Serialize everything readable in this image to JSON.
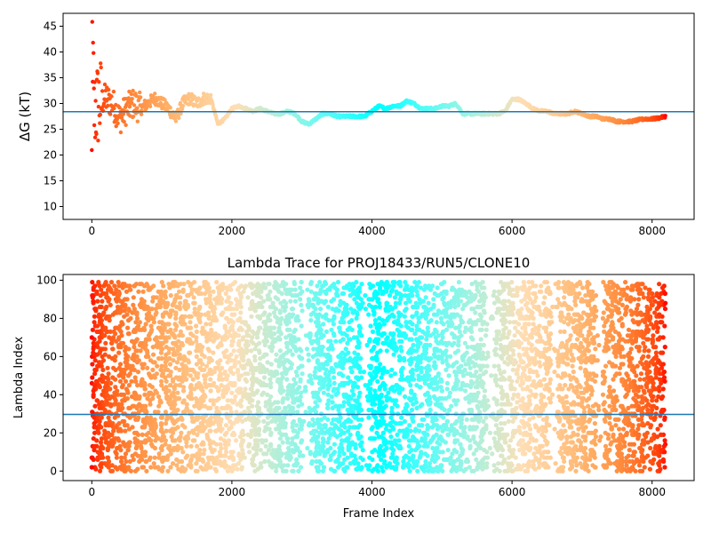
{
  "chart_data": [
    {
      "type": "scatter",
      "title": "",
      "xlabel": "",
      "ylabel": "ΔG (kT)",
      "xlim": [
        -410,
        8600
      ],
      "ylim": [
        7.5,
        47.5
      ],
      "xticks": [
        0,
        2000,
        4000,
        6000,
        8000
      ],
      "yticks": [
        10,
        15,
        20,
        25,
        30,
        35,
        40,
        45
      ],
      "xtick_labels": [
        "0",
        "2000",
        "4000",
        "6000",
        "8000"
      ],
      "ytick_labels": [
        "10",
        "15",
        "20",
        "25",
        "30",
        "35",
        "40",
        "45"
      ],
      "grid": false,
      "colormap": "rainbow (red at frame 0 to violet at last frame)",
      "reference_line": 28.4,
      "reference_line_color": "#1f77b4",
      "series_trend": {
        "frames": [
          0,
          100,
          200,
          300,
          400,
          500,
          600,
          700,
          800,
          900,
          1000,
          1100,
          1200,
          1300,
          1400,
          1500,
          1600,
          1700,
          1800,
          1900,
          2000,
          2100,
          2200,
          2300,
          2400,
          2500,
          2600,
          2700,
          2800,
          2900,
          3000,
          3100,
          3200,
          3300,
          3400,
          3500,
          3600,
          3700,
          3800,
          3900,
          4000,
          4100,
          4200,
          4300,
          4400,
          4500,
          4600,
          4700,
          4800,
          4900,
          5000,
          5100,
          5200,
          5300,
          5400,
          5500,
          5600,
          5700,
          5800,
          5900,
          6000,
          6100,
          6200,
          6300,
          6400,
          6500,
          6600,
          6700,
          6800,
          6900,
          7000,
          7100,
          7200,
          7300,
          7400,
          7500,
          7600,
          7700,
          7800,
          7900,
          8000,
          8100,
          8190
        ],
        "dG": [
          28,
          30,
          31,
          30,
          27,
          29,
          30,
          29,
          30,
          31,
          30,
          29,
          27,
          30,
          31,
          30,
          31,
          31,
          26,
          27,
          29,
          29.5,
          29,
          28.5,
          29,
          28.5,
          28,
          28,
          28.5,
          28,
          26.5,
          26,
          27,
          28,
          28,
          27.5,
          27.5,
          27.5,
          27.5,
          27.5,
          28.5,
          29.5,
          29,
          29.5,
          29.5,
          30.5,
          30,
          29,
          29,
          29,
          29.5,
          29.5,
          30,
          28,
          28,
          28,
          28,
          28,
          28,
          28.5,
          30.8,
          30.8,
          30,
          29,
          28.5,
          28.5,
          28,
          28,
          28,
          28.5,
          28,
          27.5,
          27.5,
          27,
          27,
          26.5,
          26.5,
          26.5,
          26.8,
          27,
          27,
          27.2,
          27.5
        ]
      }
    },
    {
      "type": "scatter",
      "title": "Lambda Trace for PROJ18433/RUN5/CLONE10",
      "xlabel": "Frame Index",
      "ylabel": "Lambda Index",
      "xlim": [
        -410,
        8600
      ],
      "ylim": [
        -5,
        103
      ],
      "xticks": [
        0,
        2000,
        4000,
        6000,
        8000
      ],
      "yticks": [
        0,
        20,
        40,
        60,
        80,
        100
      ],
      "xtick_labels": [
        "0",
        "2000",
        "4000",
        "6000",
        "8000"
      ],
      "ytick_labels": [
        "0",
        "20",
        "40",
        "60",
        "80",
        "100"
      ],
      "grid": false,
      "colormap": "rainbow (red at frame 0 to violet at last frame)",
      "reference_line": 29.7,
      "reference_line_color": "#1f77b4",
      "frame_range": [
        0,
        8190
      ],
      "lambda_range": [
        0,
        99
      ],
      "sparse_gaps_near_frames": [
        3050,
        3900,
        5700,
        6600,
        7250
      ]
    }
  ]
}
